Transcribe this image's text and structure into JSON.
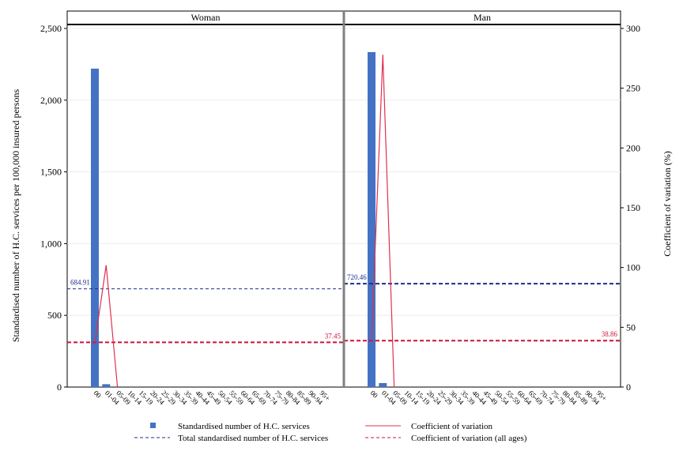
{
  "chart_data": {
    "type": "bar",
    "ylabel_left": "Standardised number of H.C. services per 100,000 insured persons",
    "ylabel_right": "Coefficient of variation (%)",
    "ylim_left": [
      0,
      2500
    ],
    "ylim_right": [
      0,
      300
    ],
    "yticks_left": [
      "0",
      "500",
      "1,000",
      "1,500",
      "2,000",
      "2,500"
    ],
    "yticks_right": [
      "0",
      "50",
      "100",
      "150",
      "200",
      "250",
      "300"
    ],
    "categories": [
      "00",
      "01-04",
      "05-09",
      "10-14",
      "15-19",
      "20-24",
      "25-29",
      "30-34",
      "35-39",
      "40-44",
      "45-49",
      "50-54",
      "55-59",
      "60-64",
      "65-69",
      "70-74",
      "75-79",
      "80-84",
      "85-89",
      "90-94",
      "95+"
    ],
    "grid": true,
    "legend_position": "bottom",
    "panels": [
      {
        "name": "Woman",
        "bars": [
          2220,
          20,
          0,
          0,
          0,
          0,
          0,
          0,
          0,
          0,
          0,
          0,
          0,
          0,
          0,
          0,
          0,
          0,
          0,
          0,
          0
        ],
        "cv": [
          37,
          102,
          0
        ],
        "total": 684.91,
        "total_label": "684.91",
        "cv_all": 37.45,
        "cv_all_label": "37.45"
      },
      {
        "name": "Man",
        "bars": [
          2335,
          28,
          0,
          0,
          0,
          0,
          0,
          0,
          0,
          0,
          0,
          0,
          0,
          0,
          0,
          0,
          0,
          0,
          0,
          0,
          0
        ],
        "cv": [
          38,
          278,
          0
        ],
        "total": 720.46,
        "total_label": "720.46",
        "cv_all": 38.86,
        "cv_all_label": "38.86"
      }
    ],
    "legend": [
      {
        "label": "Standardised number of H.C. services",
        "kind": "square"
      },
      {
        "label": "Coefficient of variation",
        "kind": "line"
      },
      {
        "label": "Total standardised number of H.C. services",
        "kind": "dash-blue"
      },
      {
        "label": "Coefficient of variation (all ages)",
        "kind": "dash-red"
      }
    ],
    "colors": {
      "bar": "#4472c4",
      "cv_line": "#e0304e",
      "total_line": "#1f2f8c",
      "cv_all_line": "#c8143c",
      "grid": "#ececec",
      "divider": "#808080"
    }
  }
}
